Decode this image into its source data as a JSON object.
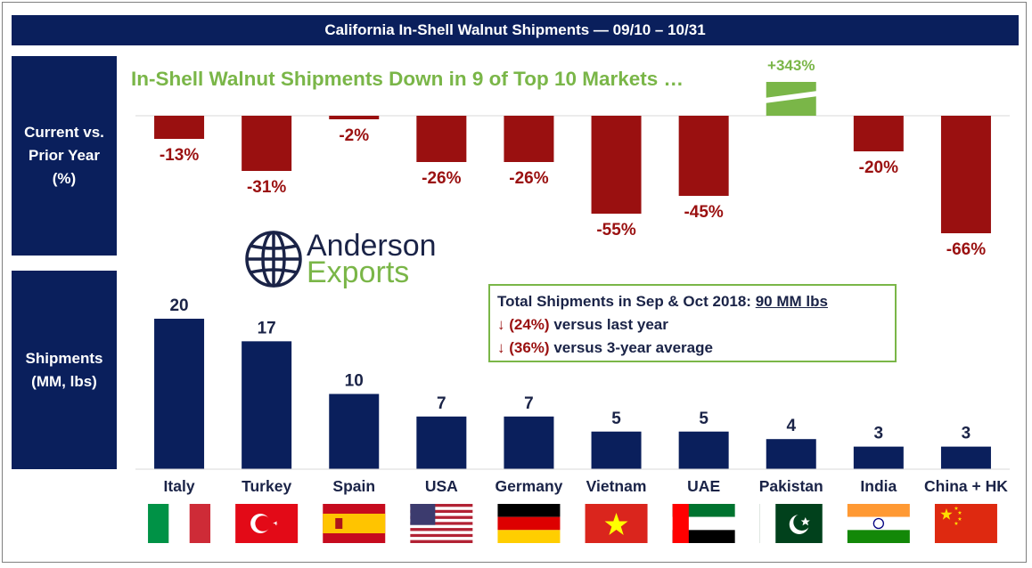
{
  "banner_title": "California In-Shell Walnut Shipments — 09/10 – 10/31",
  "headline": "In-Shell Walnut Shipments Down in 9 of Top 10 Markets …",
  "side_labels": {
    "top": "Current vs.\nPrior Year\n(%)",
    "bottom": "Shipments\n(MM, lbs)"
  },
  "logo": {
    "line1": "Anderson",
    "line2": "Exports"
  },
  "info_box": {
    "line1_prefix": "Total Shipments in Sep & Oct 2018: ",
    "line1_value": "90 MM lbs",
    "line2_arrow": "↓",
    "line2_value": "(24%)",
    "line2_text": " versus last year",
    "line3_arrow": "↓",
    "line3_value": "(36%)",
    "line3_text": " versus 3-year average"
  },
  "colors": {
    "navy": "#0a1f5c",
    "dark_red": "#9a1010",
    "green": "#7ab648",
    "text_navy": "#1a2347"
  },
  "flags": [
    "italy-flag",
    "turkey-flag",
    "spain-flag",
    "usa-flag",
    "germany-flag",
    "vietnam-flag",
    "uae-flag",
    "pakistan-flag",
    "india-flag",
    "china-flag"
  ],
  "chart_data": [
    {
      "type": "bar",
      "categories": [
        "Italy",
        "Turkey",
        "Spain",
        "USA",
        "Germany",
        "Vietnam",
        "UAE",
        "Pakistan",
        "India",
        "China + HK"
      ],
      "values": [
        -13,
        -31,
        -2,
        -26,
        -26,
        -55,
        -45,
        343,
        -20,
        -66
      ],
      "data_labels": [
        "-13%",
        "-31%",
        "-2%",
        "-26%",
        "-26%",
        "-55%",
        "-45%",
        "+343%",
        "-20%",
        "-66%"
      ],
      "axis_break_on": "Pakistan",
      "ylabel": "Current vs.\nPrior Year\n(%)"
    },
    {
      "type": "bar",
      "categories": [
        "Italy",
        "Turkey",
        "Spain",
        "USA",
        "Germany",
        "Vietnam",
        "UAE",
        "Pakistan",
        "India",
        "China + HK"
      ],
      "values": [
        20,
        17,
        10,
        7,
        7,
        5,
        5,
        4,
        3,
        3
      ],
      "data_labels": [
        "20",
        "17",
        "10",
        "7",
        "7",
        "5",
        "5",
        "4",
        "3",
        "3"
      ],
      "ylabel": "Shipments\n(MM, lbs)"
    }
  ]
}
